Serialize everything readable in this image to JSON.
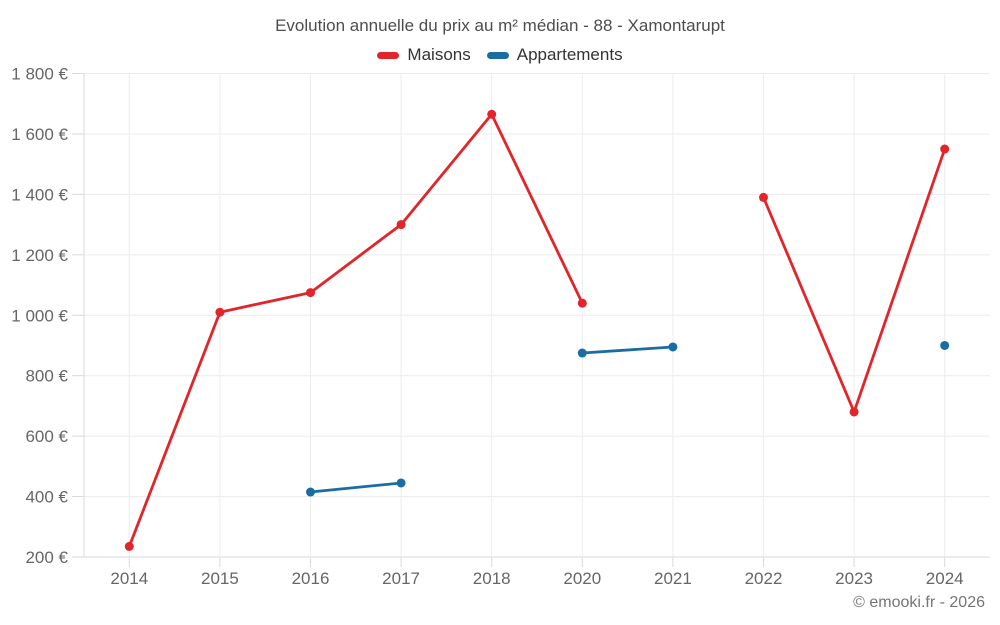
{
  "chart_data": {
    "type": "line",
    "title": "Evolution annuelle du prix au m² médian - 88 - Xamontarupt",
    "categories": [
      "2014",
      "2015",
      "2016",
      "2017",
      "2018",
      "2020",
      "2021",
      "2022",
      "2023",
      "2024"
    ],
    "series": [
      {
        "name": "Maisons",
        "color": "#e2242b",
        "values": [
          235,
          1010,
          1075,
          1300,
          1665,
          1040,
          null,
          1390,
          680,
          1550
        ]
      },
      {
        "name": "Appartements",
        "color": "#1a6da3",
        "values": [
          null,
          null,
          415,
          445,
          null,
          875,
          895,
          null,
          null,
          900
        ]
      }
    ],
    "xlabel": "",
    "ylabel": "",
    "ylim": [
      200,
      1800
    ],
    "ytick_step": 200,
    "ytick_labels": [
      "200 €",
      "400 €",
      "600 €",
      "800 €",
      "1 000 €",
      "1 200 €",
      "1 400 €",
      "1 600 €",
      "1 800 €"
    ],
    "grid": true,
    "legend_position": "top",
    "colors": {
      "grid": "#ececec",
      "axis": "#d9d9d9",
      "tick": "#d9d9d9",
      "axis_label": "#666666",
      "title_text": "#4d4d4d",
      "legend_text": "#333333",
      "credit_text": "#757575",
      "background": "#ffffff"
    }
  },
  "credit": "© emooki.fr - 2026"
}
